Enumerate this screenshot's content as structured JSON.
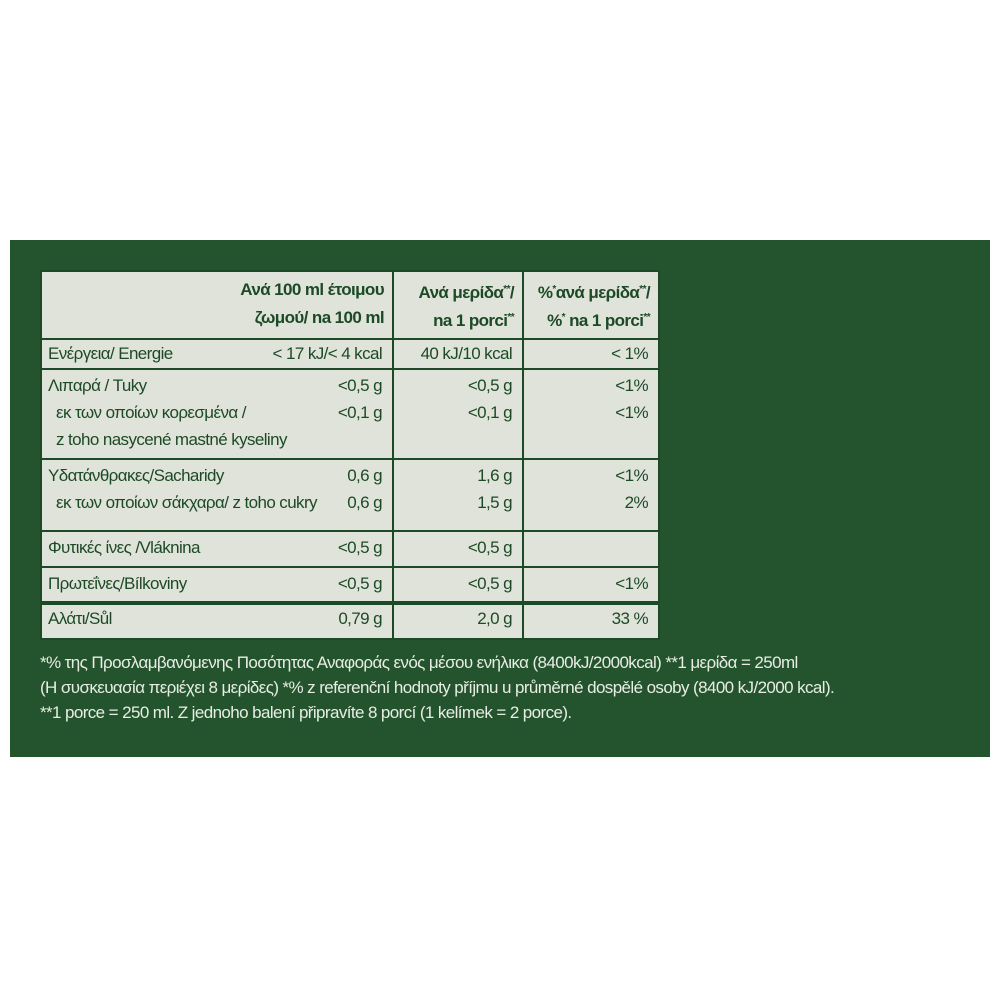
{
  "header": {
    "columns": [
      [
        [
          "Ανά 100 ml έτοιμου"
        ],
        [
          "ζωμού/ na 100 ml"
        ]
      ],
      [
        [
          "Ανά μερίδα",
          "**",
          "/"
        ],
        [
          "na 1 porci",
          "**"
        ]
      ],
      [
        [
          "%",
          "*",
          "ανά μερίδα",
          "**",
          "/"
        ],
        [
          "%",
          "*",
          " na 1 porci",
          "**"
        ]
      ]
    ]
  },
  "groups": [
    {
      "rows": [
        {
          "label": [
            "Ενέργεια/ Energie"
          ],
          "values": [
            "< 17 kJ/< 4 kcal",
            "40 kJ/10 kcal",
            "< 1%"
          ]
        }
      ]
    },
    {
      "rows": [
        {
          "label": [
            "Λιπαρά / Tuky"
          ],
          "values": [
            "<0,5 g",
            "<0,5 g",
            "<1%"
          ]
        },
        {
          "label": [
            "εκ των οποίων κορεσμένα /",
            "z toho nasycené  mastné  kyseliny"
          ],
          "values": [
            "<0,1 g",
            "<0,1 g",
            "<1%"
          ],
          "sub": true
        }
      ]
    },
    {
      "rows": [
        {
          "label": [
            "Υδατάνθρακες/Sacharidy"
          ],
          "values": [
            "0,6 g",
            "1,6 g",
            "<1%"
          ]
        },
        {
          "label": [
            "εκ των οποίων σάκχαρα/ z toho cukry"
          ],
          "values": [
            "0,6 g",
            "1,5 g",
            "2%"
          ],
          "sub": true
        }
      ]
    },
    {
      "rows": [
        {
          "label": [
            "Φυτικές ίνες /Vláknina"
          ],
          "values": [
            "<0,5 g",
            "<0,5 g"
          ]
        }
      ]
    },
    {
      "rows": [
        {
          "label": [
            "Πρωτεΐνες/Bílkoviny"
          ],
          "values": [
            "<0,5 g",
            "<0,5 g",
            "<1%"
          ]
        }
      ]
    },
    {
      "rows": [
        {
          "label": [
            "Αλάτι/Sůl"
          ],
          "values": [
            "0,79 g",
            "2,0 g",
            "33 %"
          ]
        }
      ]
    }
  ],
  "footnote": [
    "*% της Προσλαμβανόμενης Ποσότητας Αναφοράς ενός μέσου ενήλικα (8400kJ/2000kcal) **1 μερίδα = 250ml",
    "(Η συσκευασία περιέχει 8 μερίδες) *% z referenční hodnoty příjmu u průměrné dospělé osoby (8400 kJ/2000 kcal).",
    "**1 porce = 250 ml. Z jednoho balení připravíte 8 porcí (1 kelímek = 2 porce)."
  ]
}
